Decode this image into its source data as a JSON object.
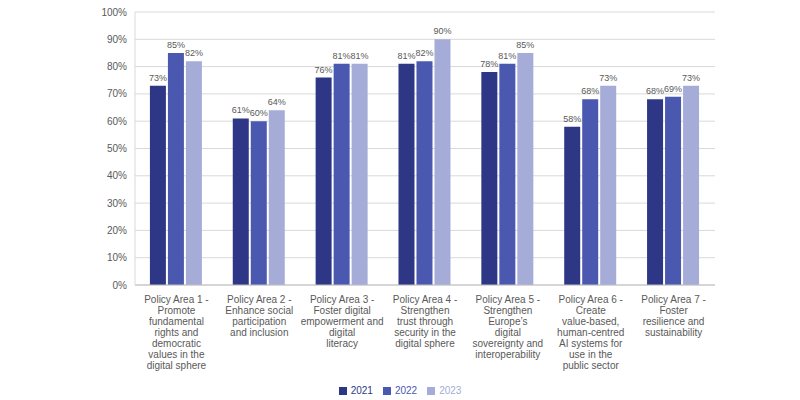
{
  "chart_data": {
    "type": "bar",
    "categories": [
      "Policy Area 1 - Promote fundamental rights and democratic values in the digital sphere",
      "Policy Area 2 - Enhance social participation and inclusion",
      "Policy Area 3 - Foster digital empowerment and digital literacy",
      "Policy Area 4 - Strengthen trust through security in the digital sphere",
      "Policy Area 5 - Strengthen Europe’s digital sovereignty and interoperability",
      "Policy Area 6 - Create value-based, human-centred AI systems for use in the public sector",
      "Policy Area 7 - Foster resilience and sustainability"
    ],
    "series": [
      {
        "name": "2021",
        "color": "#2e3785",
        "values": [
          73,
          61,
          76,
          81,
          78,
          58,
          68
        ],
        "value_labels": [
          "73%",
          "61%",
          "76%",
          "81%",
          "78%",
          "58%",
          "68%"
        ]
      },
      {
        "name": "2022",
        "color": "#4a58b0",
        "values": [
          85,
          60,
          81,
          82,
          81,
          68,
          69
        ],
        "value_labels": [
          "85%",
          "60%",
          "81%",
          "82%",
          "81%",
          "68%",
          "69%"
        ]
      },
      {
        "name": "2023",
        "color": "#a6acd8",
        "values": [
          82,
          64,
          81,
          90,
          85,
          73,
          73
        ],
        "value_labels": [
          "82%",
          "64%",
          "81%",
          "90%",
          "85%",
          "73%",
          "73%"
        ]
      }
    ],
    "ylim": [
      0,
      100
    ],
    "yticks": [
      {
        "value": 0,
        "label": "0%"
      },
      {
        "value": 10,
        "label": "10%"
      },
      {
        "value": 20,
        "label": "20%"
      },
      {
        "value": 30,
        "label": "30%"
      },
      {
        "value": 40,
        "label": "40%"
      },
      {
        "value": 50,
        "label": "50%"
      },
      {
        "value": 60,
        "label": "60%"
      },
      {
        "value": 70,
        "label": "70%"
      },
      {
        "value": 80,
        "label": "80%"
      },
      {
        "value": 90,
        "label": "90%"
      },
      {
        "value": 100,
        "label": "100%"
      }
    ],
    "grid": true,
    "legend": "bottom",
    "data_labels": true
  }
}
